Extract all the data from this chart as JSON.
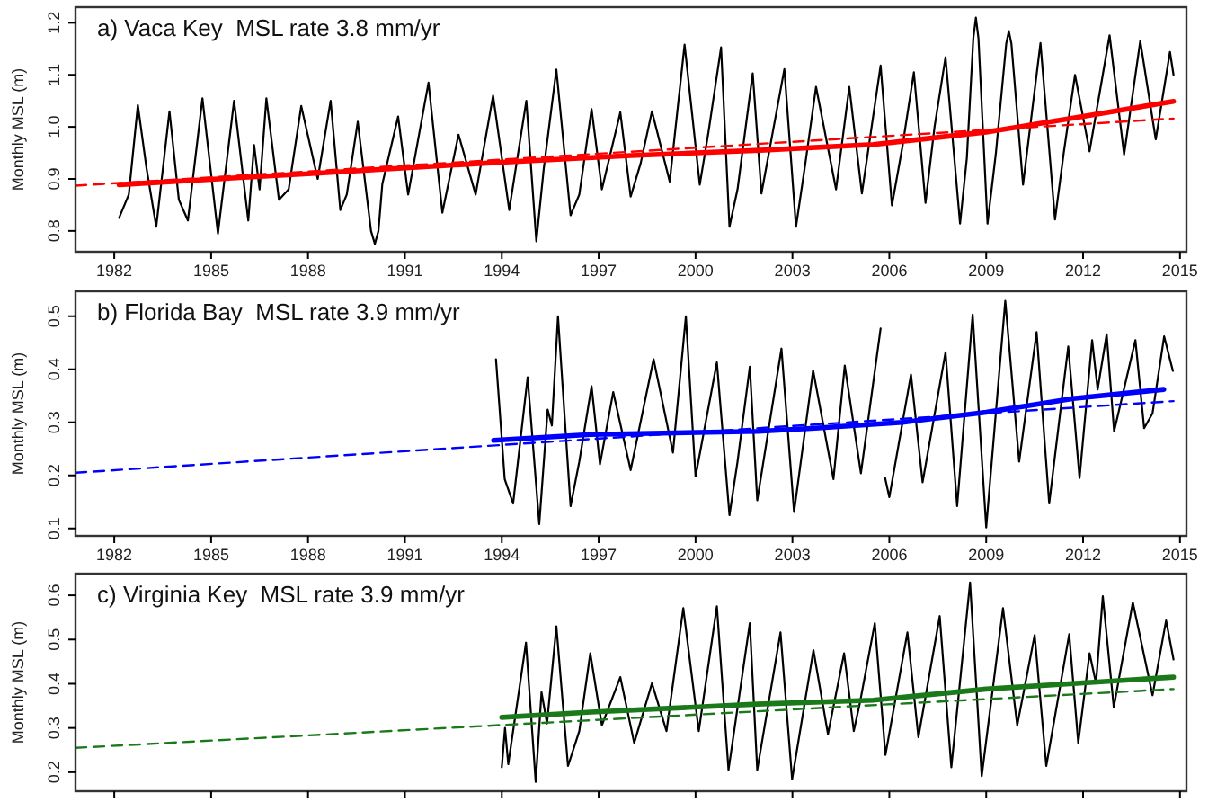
{
  "chart_data": [
    {
      "type": "line",
      "title": "a) Vaca Key  MSL rate 3.8 mm/yr",
      "ylabel": "Monthly MSL (m)",
      "xlim": [
        1980.8,
        2015.2
      ],
      "xticks": [
        1982,
        1985,
        1988,
        1991,
        1994,
        1997,
        2000,
        2003,
        2006,
        2009,
        2012,
        2015
      ],
      "ylim": [
        0.76,
        1.23
      ],
      "yticks": [
        0.8,
        0.9,
        {
          "value": 1,
          "label": "1.0"
        },
        1.1,
        1.2
      ],
      "grid": false,
      "marker": "none",
      "series": [
        {
          "color": "#000000",
          "line_style": "solid",
          "x": [
            1982.15,
            1982.45,
            1982.73,
            1983.0,
            1983.3,
            1983.71,
            1984.0,
            1984.28,
            1984.73,
            1985.21,
            1985.71,
            1986.15,
            1986.33,
            1986.5,
            1986.71,
            1987.1,
            1987.4,
            1987.79,
            1988.3,
            1988.7,
            1989.0,
            1989.2,
            1989.54,
            1989.95,
            1990.07,
            1990.18,
            1990.3,
            1990.79,
            1991.1,
            1991.73,
            1992.16,
            1992.66,
            1993.19,
            1993.73,
            1994.23,
            1994.76,
            1995.07,
            1995.3,
            1995.69,
            1996.13,
            1996.4,
            1996.78,
            1997.1,
            1997.67,
            1997.99,
            1998.3,
            1998.65,
            1999.2,
            1999.66,
            2000.13,
            2000.4,
            2000.79,
            2001.05,
            2001.3,
            2001.77,
            2002.04,
            2002.75,
            2003.11,
            2003.4,
            2003.73,
            2004.35,
            2004.76,
            2005.15,
            2005.73,
            2006.08,
            2006.4,
            2006.76,
            2007.12,
            2007.4,
            2007.74,
            2008.19,
            2008.4,
            2008.6,
            2008.68,
            2008.76,
            2009.04,
            2009.3,
            2009.62,
            2009.7,
            2009.78,
            2010.14,
            2010.68,
            2011.13,
            2011.4,
            2011.75,
            2012.2,
            2012.82,
            2013.27,
            2013.77,
            2014.25,
            2014.69,
            2014.8
          ],
          "values": [
            0.825,
            0.87,
            1.042,
            0.92,
            0.808,
            1.03,
            0.86,
            0.82,
            1.055,
            0.795,
            1.05,
            0.82,
            0.965,
            0.88,
            1.055,
            0.86,
            0.88,
            1.04,
            0.9,
            1.05,
            0.84,
            0.87,
            1.01,
            0.8,
            0.775,
            0.8,
            0.89,
            1.02,
            0.87,
            1.085,
            0.835,
            0.985,
            0.87,
            1.06,
            0.84,
            1.05,
            0.78,
            0.92,
            1.11,
            0.83,
            0.87,
            1.034,
            0.88,
            1.028,
            0.866,
            0.93,
            1.03,
            0.895,
            1.158,
            0.889,
            0.99,
            1.153,
            0.808,
            0.88,
            1.103,
            0.872,
            1.111,
            0.808,
            0.93,
            1.077,
            0.88,
            1.077,
            0.872,
            1.118,
            0.849,
            0.96,
            1.105,
            0.854,
            1.0,
            1.134,
            0.814,
            0.94,
            1.17,
            1.21,
            1.17,
            0.814,
            0.95,
            1.16,
            1.184,
            1.16,
            0.889,
            1.161,
            0.822,
            0.95,
            1.1,
            0.953,
            1.176,
            0.947,
            1.165,
            0.976,
            1.144,
            1.1
          ]
        },
        {
          "color": "#ff0000",
          "line_style": "dashed",
          "x": [
            1980.8,
            2014.8
          ],
          "values": [
            0.887,
            1.016
          ]
        },
        {
          "color": "#ff0000",
          "line_style": "solid",
          "x": [
            1982.15,
            1988,
            1994,
            1998,
            2002,
            2005.5,
            2009,
            2012,
            2014.8
          ],
          "values": [
            0.889,
            0.91,
            0.932,
            0.945,
            0.955,
            0.966,
            0.99,
            1.02,
            1.049
          ]
        }
      ]
    },
    {
      "type": "line",
      "title": "b) Florida Bay  MSL rate 3.9 mm/yr",
      "ylabel": "Monthly MSL (m)",
      "xlim": [
        1980.8,
        2015.2
      ],
      "xticks": [
        1982,
        1985,
        1988,
        1991,
        1994,
        1997,
        2000,
        2003,
        2006,
        2009,
        2012,
        2015
      ],
      "ylim": [
        0.086,
        0.547
      ],
      "yticks": [
        0.1,
        0.2,
        0.3,
        0.4,
        0.5
      ],
      "grid": false,
      "marker": "none",
      "series": [
        {
          "color": "#000000",
          "line_style": "solid",
          "x": [
            1993.82,
            1994.09,
            1994.35,
            1994.5,
            1994.8,
            1995.16,
            1995.42,
            1995.55,
            1995.74,
            1996.13,
            1996.4,
            1996.78,
            1997.04,
            1997.45,
            1997.99,
            1998.7,
            1999.3,
            1999.7,
            2000.0,
            2000.66,
            2001.05,
            2001.3,
            2001.68,
            2001.91,
            2002.66,
            2003.05,
            2003.64,
            2004.27,
            2004.62,
            2005.12,
            2005.73,
            2005.8,
            2005.87,
            2006.0,
            2006.67,
            2007.03,
            2007.74,
            2008.1,
            2008.58,
            2009.0,
            2009.59,
            2010.02,
            2010.56,
            2010.95,
            2011.54,
            2011.89,
            2012.28,
            2012.45,
            2012.73,
            2012.96,
            2013.62,
            2013.89,
            2014.15,
            2014.51,
            2014.78
          ],
          "values": [
            0.419,
            0.193,
            0.147,
            0.226,
            0.385,
            0.108,
            0.324,
            0.294,
            0.5,
            0.142,
            0.226,
            0.368,
            0.221,
            0.357,
            0.21,
            0.419,
            0.243,
            0.5,
            0.198,
            0.413,
            0.125,
            0.226,
            0.405,
            0.153,
            0.439,
            0.131,
            0.398,
            0.193,
            0.407,
            0.204,
            0.477,
            null,
            0.195,
            0.159,
            0.39,
            0.187,
            0.432,
            0.142,
            0.503,
            0.102,
            0.529,
            0.226,
            0.47,
            0.147,
            0.443,
            0.195,
            0.455,
            0.362,
            0.466,
            0.283,
            0.455,
            0.289,
            0.317,
            0.462,
            0.397
          ]
        },
        {
          "color": "#0000ff",
          "line_style": "dashed",
          "x": [
            1980.8,
            2014.8
          ],
          "values": [
            0.205,
            0.34
          ]
        },
        {
          "color": "#0000ff",
          "line_style": "solid",
          "x": [
            1993.75,
            1996.76,
            2001.93,
            2003.7,
            2006.4,
            2009.0,
            2011.7,
            2014.5
          ],
          "values": [
            0.266,
            0.277,
            0.283,
            0.289,
            0.3,
            0.319,
            0.345,
            0.362
          ]
        }
      ]
    },
    {
      "type": "line",
      "title": "c) Virginia Key  MSL rate 3.9 mm/yr",
      "ylabel": "Monthly MSL (m)",
      "xlim": [
        1980.8,
        2015.2
      ],
      "xticks": [
        1982,
        1985,
        1988,
        1991,
        1994,
        1997,
        2000,
        2003,
        2006,
        2009,
        2012,
        2015
      ],
      "ylim": [
        0.157,
        0.649
      ],
      "yticks": [
        0.2,
        0.3,
        0.4,
        0.5,
        0.6
      ],
      "tick_labels": "y",
      "grid": false,
      "marker": "none",
      "series": [
        {
          "color": "#000000",
          "line_style": "solid",
          "x": [
            1994.0,
            1994.1,
            1994.2,
            1994.75,
            1995.05,
            1995.23,
            1995.4,
            1995.69,
            1996.05,
            1996.4,
            1996.74,
            1997.1,
            1997.67,
            1998.1,
            1998.65,
            1999.1,
            1999.62,
            2000.1,
            2000.66,
            2001.02,
            2001.68,
            2001.91,
            2002.63,
            2002.99,
            2003.65,
            2004.1,
            2004.6,
            2004.9,
            2005.1,
            2005.55,
            2005.88,
            2006.56,
            2006.9,
            2007.56,
            2007.92,
            2008.5,
            2008.86,
            2009.52,
            2009.96,
            2010.5,
            2010.86,
            2011.57,
            2011.85,
            2012.2,
            2012.4,
            2012.61,
            2012.95,
            2013.54,
            2014.15,
            2014.57,
            2014.8
          ],
          "values": [
            0.211,
            0.3,
            0.218,
            0.493,
            0.178,
            0.381,
            0.31,
            0.53,
            0.214,
            0.293,
            0.469,
            0.306,
            0.415,
            0.266,
            0.401,
            0.293,
            0.571,
            0.293,
            0.575,
            0.205,
            0.537,
            0.205,
            0.516,
            0.184,
            0.476,
            0.286,
            0.469,
            0.293,
            0.361,
            0.537,
            0.239,
            0.516,
            0.279,
            0.553,
            0.211,
            0.629,
            0.191,
            0.571,
            0.306,
            0.51,
            0.214,
            0.512,
            0.266,
            0.469,
            0.401,
            0.598,
            0.347,
            0.584,
            0.374,
            0.543,
            0.455
          ]
        },
        {
          "color": "#1a7a1a",
          "line_style": "dashed",
          "x": [
            1980.8,
            2014.8
          ],
          "values": [
            0.255,
            0.388
          ]
        },
        {
          "color": "#1a7a1a",
          "line_style": "solid",
          "x": [
            1994.0,
            1996.76,
            2001.9,
            2005.5,
            2009.0,
            2014.8
          ],
          "values": [
            0.324,
            0.336,
            0.354,
            0.363,
            0.388,
            0.415
          ]
        }
      ]
    }
  ]
}
